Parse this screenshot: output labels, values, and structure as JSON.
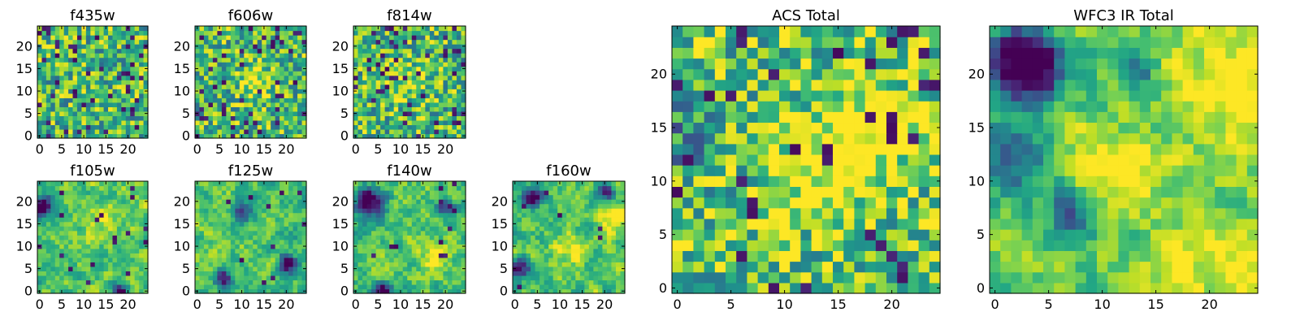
{
  "figure": {
    "colormap": "viridis",
    "background": "#ffffff"
  },
  "chart_data": [
    {
      "type": "heatmap",
      "title": "f435w",
      "grid": false,
      "xlim": [
        -0.5,
        24.5
      ],
      "ylim": [
        -0.5,
        24.5
      ],
      "x_ticks": [
        0,
        5,
        10,
        15,
        20
      ],
      "y_ticks": [
        0,
        5,
        10,
        15,
        20
      ],
      "x_tick_labels": [
        "0",
        "5",
        "10",
        "15",
        "20"
      ],
      "y_tick_labels": [
        "0",
        "5",
        "10",
        "15",
        "20"
      ],
      "smooth": 0,
      "blob_bias": 0.0,
      "dark_fraction": 0.08,
      "seed": 11,
      "blobs": []
    },
    {
      "type": "heatmap",
      "title": "f606w",
      "grid": false,
      "xlim": [
        -0.5,
        24.5
      ],
      "ylim": [
        -0.5,
        24.5
      ],
      "x_ticks": [
        0,
        5,
        10,
        15,
        20
      ],
      "y_ticks": [
        0,
        5,
        10,
        15,
        20
      ],
      "x_tick_labels": [
        "0",
        "5",
        "10",
        "15",
        "20"
      ],
      "y_tick_labels": [
        "0",
        "5",
        "10",
        "15",
        "20"
      ],
      "smooth": 0,
      "blob_bias": 0.0,
      "dark_fraction": 0.07,
      "seed": 23,
      "blobs": [
        [
          13,
          12,
          2.5,
          0.35
        ]
      ]
    },
    {
      "type": "heatmap",
      "title": "f814w",
      "grid": false,
      "xlim": [
        -0.5,
        24.5
      ],
      "ylim": [
        -0.5,
        24.5
      ],
      "x_ticks": [
        0,
        5,
        10,
        15,
        20
      ],
      "y_ticks": [
        0,
        5,
        10,
        15,
        20
      ],
      "x_tick_labels": [
        "0",
        "5",
        "10",
        "15",
        "20"
      ],
      "y_tick_labels": [
        "0",
        "5",
        "10",
        "15",
        "20"
      ],
      "smooth": 0,
      "blob_bias": 0.0,
      "dark_fraction": 0.08,
      "seed": 37,
      "blobs": [
        [
          12,
          12,
          3,
          0.2
        ]
      ]
    },
    {
      "type": "heatmap",
      "title": "f105w",
      "grid": false,
      "xlim": [
        -0.5,
        24.5
      ],
      "ylim": [
        -0.5,
        24.5
      ],
      "x_ticks": [
        0,
        5,
        10,
        15,
        20
      ],
      "y_ticks": [
        0,
        5,
        10,
        15,
        20
      ],
      "x_tick_labels": [
        "0",
        "5",
        "10",
        "15",
        "20"
      ],
      "y_tick_labels": [
        "0",
        "5",
        "10",
        "15",
        "20"
      ],
      "smooth": 1,
      "blob_bias": 0.05,
      "dark_fraction": 0.02,
      "seed": 41,
      "blobs": [
        [
          1,
          19,
          1.8,
          -0.8
        ],
        [
          18,
          0,
          1.2,
          -0.9
        ],
        [
          13,
          15,
          3,
          0.2
        ]
      ]
    },
    {
      "type": "heatmap",
      "title": "f125w",
      "grid": false,
      "xlim": [
        -0.5,
        24.5
      ],
      "ylim": [
        -0.5,
        24.5
      ],
      "x_ticks": [
        0,
        5,
        10,
        15,
        20
      ],
      "y_ticks": [
        0,
        5,
        10,
        15,
        20
      ],
      "x_tick_labels": [
        "0",
        "5",
        "10",
        "15",
        "20"
      ],
      "y_tick_labels": [
        "0",
        "5",
        "10",
        "15",
        "20"
      ],
      "smooth": 1,
      "blob_bias": 0.05,
      "dark_fraction": 0.02,
      "seed": 53,
      "blobs": [
        [
          20,
          6,
          1.5,
          -0.8
        ],
        [
          10,
          17,
          1.8,
          -0.5
        ],
        [
          6,
          3,
          1.5,
          -0.6
        ]
      ]
    },
    {
      "type": "heatmap",
      "title": "f140w",
      "grid": false,
      "xlim": [
        -0.5,
        24.5
      ],
      "ylim": [
        -0.5,
        24.5
      ],
      "x_ticks": [
        0,
        5,
        10,
        15,
        20
      ],
      "y_ticks": [
        0,
        5,
        10,
        15,
        20
      ],
      "x_tick_labels": [
        "0",
        "5",
        "10",
        "15",
        "20"
      ],
      "y_tick_labels": [
        "0",
        "5",
        "10",
        "15",
        "20"
      ],
      "smooth": 1,
      "blob_bias": 0.05,
      "dark_fraction": 0.02,
      "seed": 67,
      "blobs": [
        [
          3,
          20,
          2.2,
          -0.9
        ],
        [
          6,
          0,
          1.3,
          -0.9
        ],
        [
          20,
          19,
          1.5,
          -0.5
        ],
        [
          18,
          8,
          2.5,
          0.25
        ]
      ]
    },
    {
      "type": "heatmap",
      "title": "f160w",
      "grid": false,
      "xlim": [
        -0.5,
        24.5
      ],
      "ylim": [
        -0.5,
        24.5
      ],
      "x_ticks": [
        0,
        5,
        10,
        15,
        20
      ],
      "y_ticks": [
        0,
        5,
        10,
        15,
        20
      ],
      "x_tick_labels": [
        "0",
        "5",
        "10",
        "15",
        "20"
      ],
      "y_tick_labels": [
        "0",
        "5",
        "10",
        "15",
        "20"
      ],
      "smooth": 1,
      "blob_bias": 0.05,
      "dark_fraction": 0.02,
      "seed": 79,
      "blobs": [
        [
          4,
          21,
          1.6,
          -0.9
        ],
        [
          20,
          22,
          1.5,
          -0.7
        ],
        [
          1,
          5,
          1.5,
          -0.7
        ],
        [
          22,
          17,
          2.5,
          0.3
        ],
        [
          12,
          9,
          2.5,
          0.25
        ]
      ]
    },
    {
      "type": "heatmap",
      "title": "ACS Total",
      "grid": false,
      "xlim": [
        -0.5,
        24.5
      ],
      "ylim": [
        -0.5,
        24.5
      ],
      "x_ticks": [
        0,
        5,
        10,
        15,
        20
      ],
      "y_ticks": [
        0,
        5,
        10,
        15,
        20
      ],
      "x_tick_labels": [
        "0",
        "5",
        "10",
        "15",
        "20"
      ],
      "y_tick_labels": [
        "0",
        "5",
        "10",
        "15",
        "20"
      ],
      "smooth": 0,
      "blob_bias": 0.05,
      "dark_fraction": 0.06,
      "seed": 97,
      "blobs": [
        [
          18,
          15,
          3,
          0.35
        ],
        [
          13,
          11,
          3,
          0.3
        ],
        [
          0,
          15,
          3,
          -0.25
        ]
      ]
    },
    {
      "type": "heatmap",
      "title": "WFC3 IR Total",
      "grid": false,
      "xlim": [
        -0.5,
        24.5
      ],
      "ylim": [
        -0.5,
        24.5
      ],
      "x_ticks": [
        0,
        5,
        10,
        15,
        20
      ],
      "y_ticks": [
        0,
        5,
        10,
        15,
        20
      ],
      "x_tick_labels": [
        "0",
        "5",
        "10",
        "15",
        "20"
      ],
      "y_tick_labels": [
        "0",
        "5",
        "10",
        "15",
        "20"
      ],
      "smooth": 1,
      "blob_bias": 0.1,
      "dark_fraction": 0.0,
      "seed": 131,
      "blobs": [
        [
          3,
          21,
          2.4,
          -1.2
        ],
        [
          1,
          12,
          2.5,
          -0.5
        ],
        [
          7,
          7,
          1.8,
          -0.45
        ],
        [
          13,
          20,
          1.2,
          -0.4
        ],
        [
          22,
          19,
          3,
          0.4
        ],
        [
          12,
          11,
          2.5,
          0.35
        ],
        [
          21,
          2,
          3,
          0.3
        ]
      ]
    }
  ]
}
